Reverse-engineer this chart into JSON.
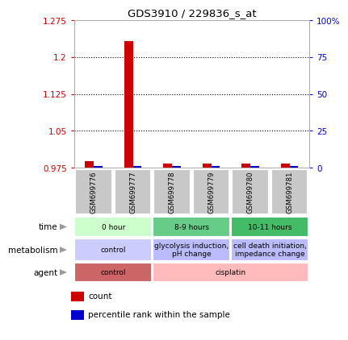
{
  "title": "GDS3910 / 229836_s_at",
  "samples": [
    "GSM699776",
    "GSM699777",
    "GSM699778",
    "GSM699779",
    "GSM699780",
    "GSM699781"
  ],
  "count_values": [
    0.988,
    1.233,
    0.984,
    0.984,
    0.983,
    0.984
  ],
  "percentile_values": [
    0.9785,
    0.9785,
    0.9785,
    0.9785,
    0.9785,
    0.9785
  ],
  "ylim": [
    0.975,
    1.275
  ],
  "yticks_left": [
    0.975,
    1.05,
    1.125,
    1.2,
    1.275
  ],
  "yticks_right": [
    0,
    25,
    50,
    75,
    100
  ],
  "yticks_right_labels": [
    "0",
    "25",
    "50",
    "75",
    "100%"
  ],
  "bar_bottom": 0.975,
  "count_color": "#cc0000",
  "percentile_color": "#0000cc",
  "plot_bg": "#ffffff",
  "sample_label_bg": "#c8c8c8",
  "time_row": {
    "label": "time",
    "groups": [
      {
        "text": "0 hour",
        "span": [
          0,
          2
        ],
        "color": "#ccffcc"
      },
      {
        "text": "8-9 hours",
        "span": [
          2,
          4
        ],
        "color": "#66cc88"
      },
      {
        "text": "10-11 hours",
        "span": [
          4,
          6
        ],
        "color": "#44bb66"
      }
    ]
  },
  "metabolism_row": {
    "label": "metabolism",
    "groups": [
      {
        "text": "control",
        "span": [
          0,
          2
        ],
        "color": "#ccccff"
      },
      {
        "text": "glycolysis induction,\npH change",
        "span": [
          2,
          4
        ],
        "color": "#bbbbff"
      },
      {
        "text": "cell death initiation,\nimpedance change",
        "span": [
          4,
          6
        ],
        "color": "#bbbbff"
      }
    ]
  },
  "agent_row": {
    "label": "agent",
    "groups": [
      {
        "text": "control",
        "span": [
          0,
          2
        ],
        "color": "#cc6666"
      },
      {
        "text": "cisplatin",
        "span": [
          2,
          6
        ],
        "color": "#ffbbbb"
      }
    ]
  },
  "legend": [
    {
      "color": "#cc0000",
      "label": "count"
    },
    {
      "color": "#0000cc",
      "label": "percentile rank within the sample"
    }
  ]
}
